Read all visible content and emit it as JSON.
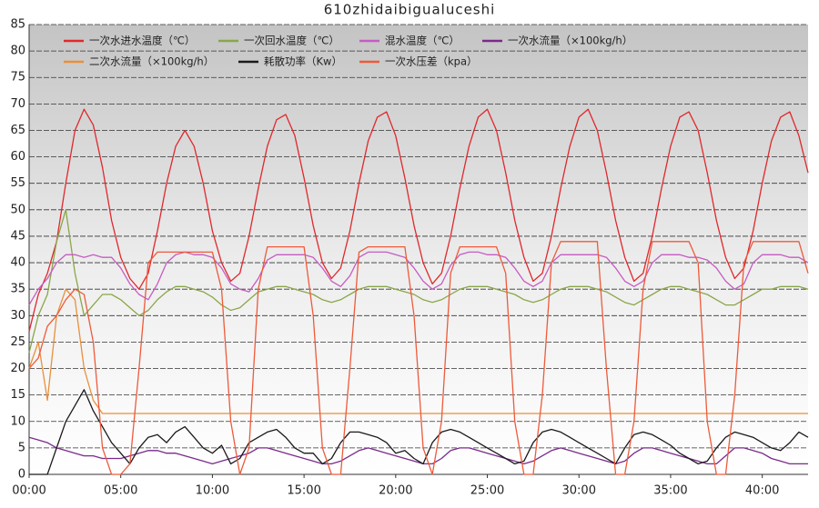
{
  "chart_data": {
    "type": "line",
    "title": "610zhidaibigualuceshi",
    "x": [
      0,
      0.5,
      1,
      1.5,
      2,
      2.5,
      3,
      3.5,
      4,
      4.5,
      5,
      5.5,
      6,
      6.5,
      7,
      7.5,
      8,
      8.5,
      9,
      9.5,
      10,
      10.5,
      11,
      11.5,
      12,
      12.5,
      13,
      13.5,
      14,
      14.5,
      15,
      15.5,
      16,
      16.5,
      17,
      17.5,
      18,
      18.5,
      19,
      19.5,
      20,
      20.5,
      21,
      21.5,
      22,
      22.5,
      23,
      23.5,
      24,
      24.5,
      25,
      25.5,
      26,
      26.5,
      27,
      27.5,
      28,
      28.5,
      29,
      29.5,
      30,
      30.5,
      31,
      31.5,
      32,
      32.5,
      33,
      33.5,
      34,
      34.5,
      35,
      35.5,
      36,
      36.5,
      37,
      37.5,
      38,
      38.5,
      39,
      39.5,
      40,
      40.5,
      41,
      41.5,
      42,
      42.5
    ],
    "xlim": [
      0,
      42.5
    ],
    "xticks": [
      {
        "value": 0,
        "label": "00:00"
      },
      {
        "value": 5,
        "label": "05:00"
      },
      {
        "value": 10,
        "label": "10:00"
      },
      {
        "value": 15,
        "label": "15:00"
      },
      {
        "value": 20,
        "label": "20:00"
      },
      {
        "value": 25,
        "label": "25:00"
      },
      {
        "value": 30,
        "label": "30:00"
      },
      {
        "value": 35,
        "label": "35:00"
      },
      {
        "value": 40,
        "label": "40:00"
      }
    ],
    "ylim": [
      0,
      85
    ],
    "yticks": [
      0,
      5,
      10,
      15,
      20,
      25,
      30,
      35,
      40,
      45,
      50,
      55,
      60,
      65,
      70,
      75,
      80,
      85
    ],
    "grid": true,
    "series": [
      {
        "name": "一次水进水温度（℃）",
        "color": "#e0282c",
        "values": [
          27,
          34,
          38,
          44,
          55,
          65,
          69,
          66,
          58,
          48,
          41,
          37,
          35,
          38,
          46,
          55,
          62,
          65,
          62,
          55,
          46,
          40,
          36.5,
          38,
          45,
          54,
          62,
          67,
          68,
          64,
          56,
          47,
          40,
          37,
          39,
          46,
          55,
          63,
          67.5,
          68.5,
          64,
          56,
          47,
          40,
          36,
          38,
          45,
          54,
          62,
          67.5,
          69,
          65,
          57,
          48,
          41,
          36.5,
          38,
          45,
          54,
          62,
          67.5,
          69,
          65,
          57,
          48,
          41,
          36.5,
          38,
          45,
          54,
          62,
          67.5,
          68.5,
          65,
          57,
          48,
          41,
          37,
          39,
          46,
          55,
          63,
          67.5,
          68.5,
          64,
          57
        ]
      },
      {
        "name": "一次回水温度（℃）",
        "color": "#8aa64a",
        "values": [
          23,
          30,
          34,
          44,
          50,
          38,
          30,
          32,
          34,
          34,
          33,
          31.5,
          30,
          31,
          33,
          34.5,
          35.5,
          35.5,
          35,
          34.5,
          33.5,
          32,
          31,
          31.5,
          33,
          34.5,
          35,
          35.5,
          35.5,
          35,
          34.5,
          34,
          33,
          32.5,
          33,
          34,
          35,
          35.5,
          35.5,
          35.5,
          35,
          34.5,
          34,
          33,
          32.5,
          33,
          34,
          35,
          35.5,
          35.5,
          35.5,
          35,
          34.5,
          34,
          33,
          32.5,
          33,
          34,
          35,
          35.5,
          35.5,
          35.5,
          35,
          34.5,
          33.5,
          32.5,
          32,
          33,
          34,
          35,
          35.5,
          35.5,
          35,
          34.5,
          34,
          33,
          32,
          32,
          33,
          34,
          35,
          35,
          35.5,
          35.5,
          35.5,
          35
        ]
      },
      {
        "name": "混水温度（℃）",
        "color": "#c65cc2",
        "values": [
          32,
          35,
          37,
          40,
          41.5,
          41.5,
          41,
          41.5,
          41,
          41,
          39,
          36,
          34,
          33,
          36,
          40,
          41.5,
          42,
          41.5,
          41.5,
          41,
          39,
          36,
          35,
          34.5,
          37,
          40.5,
          41.5,
          41.5,
          41.5,
          41.5,
          41,
          39,
          36.5,
          35.5,
          37.5,
          41,
          42,
          42,
          42,
          41.5,
          41,
          39,
          36.5,
          35,
          36,
          39.5,
          41.5,
          42,
          42,
          41.5,
          41.5,
          41,
          39,
          36.5,
          35.5,
          36.5,
          40,
          41.5,
          41.5,
          41.5,
          41.5,
          41.5,
          41,
          39,
          36.5,
          35.5,
          36.5,
          40,
          41.5,
          41.5,
          41.5,
          41,
          41,
          40.5,
          39,
          36.5,
          35,
          36,
          40,
          41.5,
          41.5,
          41.5,
          41,
          41,
          40
        ]
      },
      {
        "name": "一次水流量（×100kg/h）",
        "color": "#7a2a8c",
        "values": [
          7,
          6.5,
          6,
          5,
          4.5,
          4,
          3.5,
          3.5,
          3,
          3,
          3,
          3.5,
          4,
          4.5,
          4.5,
          4,
          4,
          3.5,
          3,
          2.5,
          2,
          2.5,
          3,
          3.5,
          4,
          5,
          5,
          4.5,
          4,
          3.5,
          3,
          2.5,
          2,
          2,
          2.5,
          3.5,
          4.5,
          5,
          4.5,
          4,
          3.5,
          3,
          2.5,
          2,
          2,
          3,
          4.5,
          5,
          5,
          4.5,
          4,
          3.5,
          3,
          2.5,
          2,
          2.5,
          3.5,
          4.5,
          5,
          4.5,
          4,
          3.5,
          3,
          2.5,
          2,
          2.5,
          4,
          5,
          5,
          4.5,
          4,
          3.5,
          3,
          2.5,
          2,
          2,
          3.5,
          5,
          5,
          4.5,
          4,
          3,
          2.5,
          2,
          2,
          2
        ]
      },
      {
        "name": "二次水流量（×100kg/h）",
        "color": "#e8903a",
        "values": [
          20,
          25,
          14,
          30,
          35,
          33,
          20,
          14,
          11.5,
          11.5,
          11.5,
          11.5,
          11.5,
          11.5,
          11.5,
          11.5,
          11.5,
          11.5,
          11.5,
          11.5,
          11.5,
          11.5,
          11.5,
          11.5,
          11.5,
          11.5,
          11.5,
          11.5,
          11.5,
          11.5,
          11.5,
          11.5,
          11.5,
          11.5,
          11.5,
          11.5,
          11.5,
          11.5,
          11.5,
          11.5,
          11.5,
          11.5,
          11.5,
          11.5,
          11.5,
          11.5,
          11.5,
          11.5,
          11.5,
          11.5,
          11.5,
          11.5,
          11.5,
          11.5,
          11.5,
          11.5,
          11.5,
          11.5,
          11.5,
          11.5,
          11.5,
          11.5,
          11.5,
          11.5,
          11.5,
          11.5,
          11.5,
          11.5,
          11.5,
          11.5,
          11.5,
          11.5,
          11.5,
          11.5,
          11.5,
          11.5,
          11.5,
          11.5,
          11.5,
          11.5,
          11.5,
          11.5,
          11.5,
          11.5,
          11.5,
          11.5
        ]
      },
      {
        "name": "耗散功率（Kw）",
        "color": "#1a1a1a",
        "values": [
          0,
          0,
          0,
          5,
          10,
          13,
          16,
          12,
          9,
          6,
          4,
          2,
          5,
          7,
          7.5,
          6,
          8,
          9,
          7,
          5,
          4,
          5.5,
          2,
          3,
          6,
          7,
          8,
          8.5,
          7,
          5,
          4,
          4,
          2,
          3,
          6,
          8,
          8,
          7.5,
          7,
          6,
          4,
          4.5,
          3,
          2,
          6,
          8,
          8.5,
          8,
          7,
          6,
          5,
          4,
          3,
          2,
          2.5,
          6,
          8,
          8.5,
          8,
          7,
          6,
          5,
          4,
          3,
          2,
          5,
          7.5,
          8,
          7.5,
          6.5,
          5.5,
          4,
          3,
          2,
          2.5,
          5,
          7,
          8,
          7.5,
          7,
          6,
          5,
          4.5,
          6,
          8,
          7
        ]
      },
      {
        "name": "一次水压差（kpa）",
        "color": "#ee5a3a",
        "values": [
          20,
          22,
          28,
          30,
          33,
          35,
          34,
          25,
          5,
          0,
          0,
          2,
          20,
          40,
          42,
          42,
          42,
          42,
          42,
          42,
          42,
          35,
          10,
          0,
          5,
          35,
          43,
          43,
          43,
          43,
          43,
          30,
          5,
          0,
          0,
          20,
          42,
          43,
          43,
          43,
          43,
          43,
          30,
          5,
          0,
          10,
          38,
          43,
          43,
          43,
          43,
          43,
          38,
          10,
          0,
          0,
          15,
          40,
          44,
          44,
          44,
          44,
          44,
          20,
          0,
          0,
          10,
          35,
          44,
          44,
          44,
          44,
          44,
          40,
          10,
          0,
          0,
          15,
          40,
          44,
          44,
          44,
          44,
          44,
          44,
          38
        ]
      }
    ]
  }
}
